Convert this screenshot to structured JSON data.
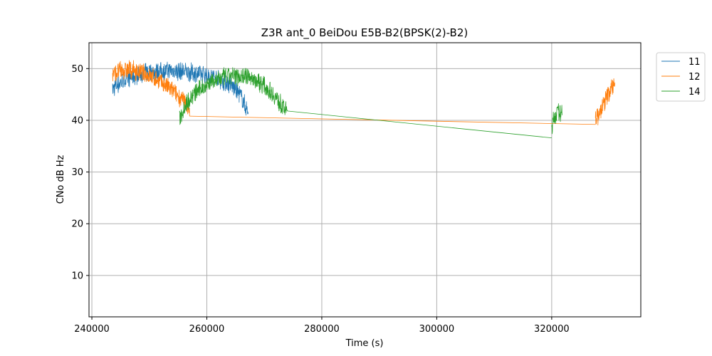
{
  "chart_data": {
    "type": "line",
    "title": "Z3R ant_0 BeiDou E5B-B2(BPSK(2)-B2)",
    "xlabel": "Time (s)",
    "ylabel": "CNo dB Hz",
    "xlim": [
      239500,
      335500
    ],
    "ylim": [
      2,
      55
    ],
    "x_ticks": [
      240000,
      260000,
      280000,
      300000,
      320000
    ],
    "x_tick_labels": [
      "240000",
      "260000",
      "280000",
      "300000",
      "320000"
    ],
    "y_ticks": [
      10,
      20,
      30,
      40,
      50
    ],
    "y_tick_labels": [
      "10",
      "20",
      "30",
      "40",
      "50"
    ],
    "grid": true,
    "legend_position": "outside-top-right",
    "series": [
      {
        "name": "11",
        "color": "#1f77b4",
        "segments": [
          {
            "x": [
              243600,
              244500,
              246000,
              248000,
              250000,
              252000,
              254000,
              256000,
              258000,
              259500,
              261000,
              262500,
              264000,
              265000,
              266000,
              266800,
              267200
            ],
            "y": [
              46,
              47,
              48,
              48.8,
              49.3,
              49.5,
              49.6,
              49.4,
              49.1,
              48.8,
              48.5,
              47.8,
              47,
              46,
              44.5,
              42.5,
              41.5
            ]
          }
        ]
      },
      {
        "name": "12",
        "color": "#ff7f0e",
        "segments": [
          {
            "x": [
              243600,
              245000,
              246500,
              248000,
              249500,
              251000,
              252500,
              253500,
              254500,
              255300,
              256000,
              256800,
              257000
            ],
            "y": [
              49,
              49.6,
              49.8,
              49.4,
              48.8,
              48,
              47,
              46.2,
              45.3,
              44.4,
              43.6,
              42.6,
              40.8
            ]
          },
          {
            "x": [
              257000,
              327600
            ],
            "y": [
              40.8,
              39.2
            ]
          },
          {
            "x": [
              327600,
              328000,
              328600,
              329200,
              329800,
              330400,
              331000
            ],
            "y": [
              41,
              40.5,
              42,
              43.5,
              45,
              46.3,
              47.3
            ]
          }
        ]
      },
      {
        "name": "14",
        "color": "#2ca02c",
        "segments": [
          {
            "x": [
              255200,
              256000,
              257000,
              258500,
              260000,
              261500,
              263000,
              264500,
              266000,
              267500,
              269000,
              270500,
              271800,
              272800,
              273500,
              274000
            ],
            "y": [
              40,
              42.5,
              44.2,
              45.8,
              47,
              47.8,
              48.3,
              48.6,
              48.6,
              48.3,
              47.5,
              46.2,
              44.7,
              43.2,
              42.3,
              41.8
            ]
          },
          {
            "x": [
              274000,
              320000
            ],
            "y": [
              41.8,
              36.6
            ]
          },
          {
            "x": [
              320000,
              320400,
              320800,
              321300,
              321800
            ],
            "y": [
              38.5,
              40.5,
              41.3,
              41.5,
              41
            ]
          }
        ]
      }
    ]
  }
}
